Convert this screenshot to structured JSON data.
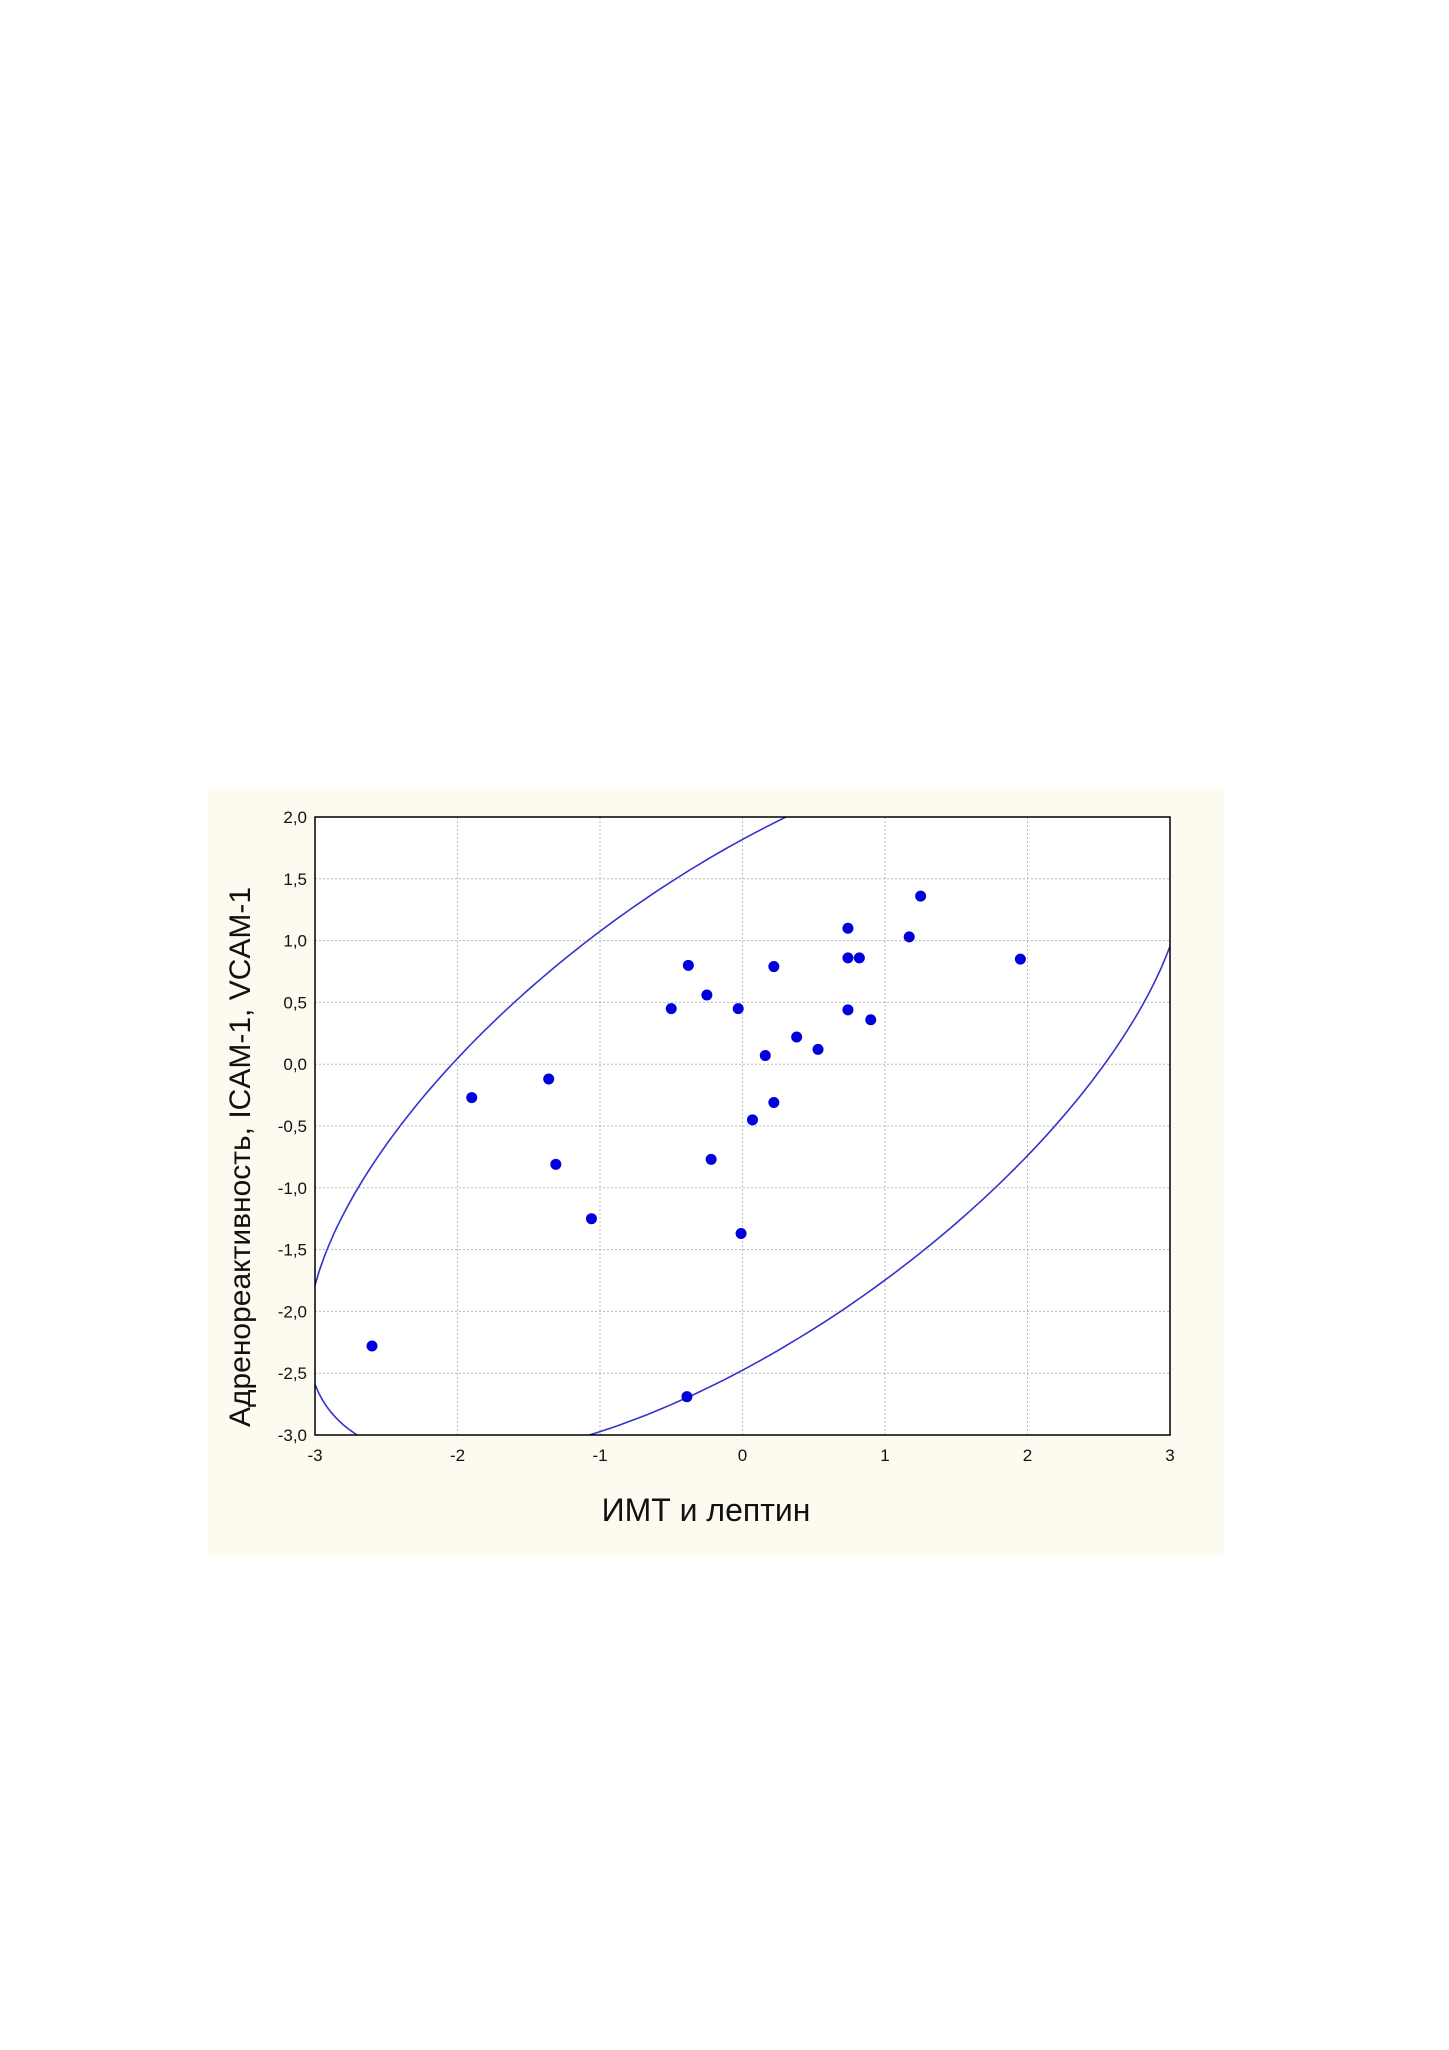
{
  "chart_data": {
    "type": "scatter",
    "xlabel": "ИМТ и лептин",
    "ylabel": "Адренореактивность, ICAM-1, VCAM-1",
    "xlim": [
      -3,
      3
    ],
    "ylim": [
      -3.0,
      2.0
    ],
    "xticks": [
      -3,
      -2,
      -1,
      0,
      1,
      2,
      3
    ],
    "xtick_labels": [
      "-3",
      "-2",
      "-1",
      "0",
      "1",
      "2",
      "3"
    ],
    "yticks": [
      2.0,
      1.5,
      1.0,
      0.5,
      0.0,
      -0.5,
      -1.0,
      -1.5,
      -2.0,
      -2.5,
      -3.0
    ],
    "ytick_labels": [
      "2,0",
      "1,5",
      "1,0",
      "0,5",
      "0,0",
      "-0,5",
      "-1,0",
      "-1,5",
      "-2,0",
      "-2,5",
      "-3,0"
    ],
    "grid": true,
    "points": [
      {
        "x": 1.25,
        "y": 1.36
      },
      {
        "x": 0.74,
        "y": 1.1
      },
      {
        "x": 1.17,
        "y": 1.03
      },
      {
        "x": 0.74,
        "y": 0.86
      },
      {
        "x": 0.82,
        "y": 0.86
      },
      {
        "x": 1.95,
        "y": 0.85
      },
      {
        "x": -0.38,
        "y": 0.8
      },
      {
        "x": 0.22,
        "y": 0.79
      },
      {
        "x": -0.25,
        "y": 0.56
      },
      {
        "x": -0.5,
        "y": 0.45
      },
      {
        "x": -0.03,
        "y": 0.45
      },
      {
        "x": 0.74,
        "y": 0.44
      },
      {
        "x": 0.9,
        "y": 0.36
      },
      {
        "x": 0.38,
        "y": 0.22
      },
      {
        "x": 0.53,
        "y": 0.12
      },
      {
        "x": 0.16,
        "y": 0.07
      },
      {
        "x": -1.36,
        "y": -0.12
      },
      {
        "x": -1.9,
        "y": -0.27
      },
      {
        "x": 0.22,
        "y": -0.31
      },
      {
        "x": 0.07,
        "y": -0.45
      },
      {
        "x": -0.22,
        "y": -0.77
      },
      {
        "x": -1.31,
        "y": -0.81
      },
      {
        "x": -1.06,
        "y": -1.25
      },
      {
        "x": -0.01,
        "y": -1.37
      },
      {
        "x": -2.6,
        "y": -2.28
      },
      {
        "x": -0.39,
        "y": -2.69
      }
    ],
    "confidence_ellipse": {
      "center": [
        0.03,
        -0.31
      ],
      "semi_major": 3.85,
      "semi_minor": 1.72,
      "angle_deg": 42
    },
    "colors": {
      "points": "#0000dd",
      "ellipse": "#3333cc",
      "panel_background": "#fdfbf0",
      "plot_background": "#ffffff",
      "grid": "#b8b8b8"
    }
  }
}
